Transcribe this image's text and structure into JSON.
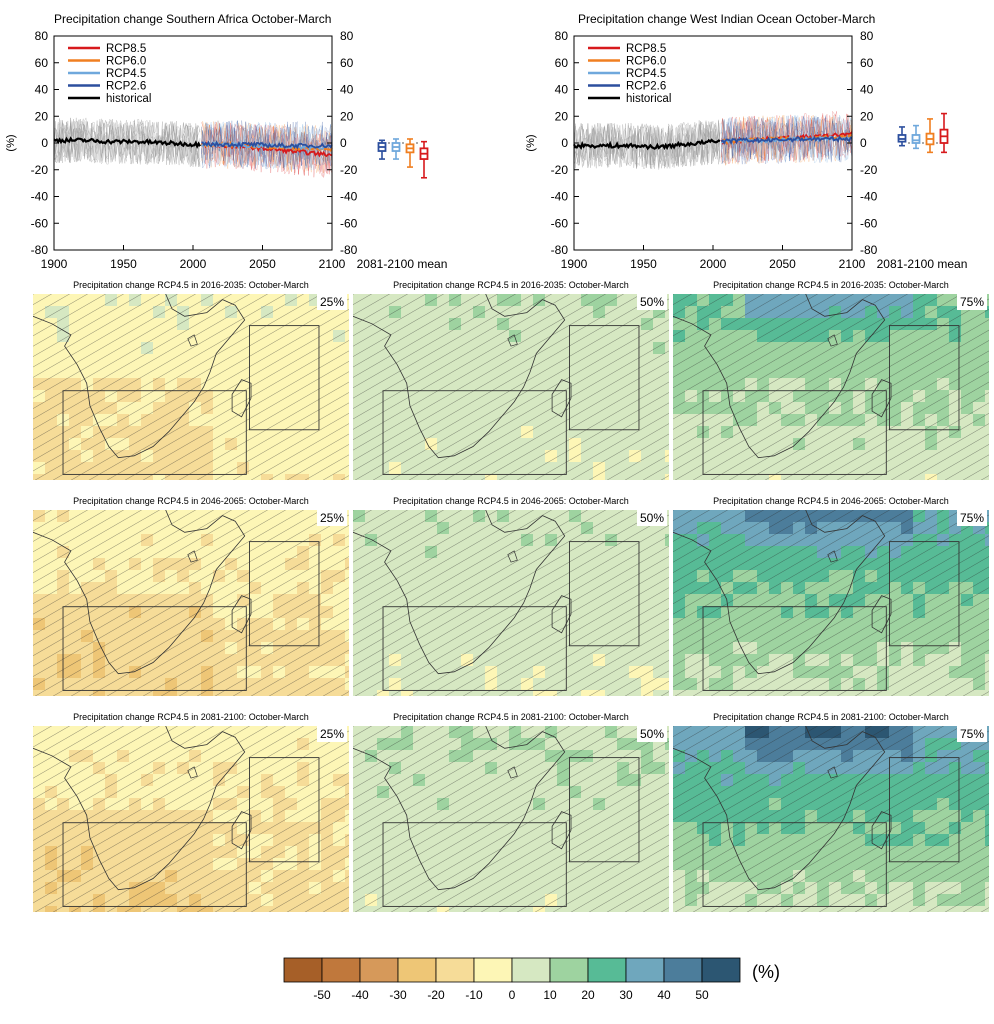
{
  "chart_data": [
    {
      "type": "line",
      "title": "Precipitation change Southern Africa October-March",
      "ylabel": "(%)",
      "xlim": [
        1900,
        2100
      ],
      "ylim": [
        -80,
        80
      ],
      "xticks": [
        1900,
        1950,
        2000,
        2050,
        2100
      ],
      "yticks": [
        -80,
        -60,
        -40,
        -20,
        0,
        20,
        40,
        60,
        80
      ],
      "mean_label": "2081-2100 mean",
      "legend_position": "top-left",
      "series": [
        {
          "name": "RCP8.5",
          "color": "#d7191c",
          "x": [
            2006,
            2020,
            2040,
            2060,
            2080,
            2100
          ],
          "values": [
            -1,
            -2,
            -3,
            -5,
            -7,
            -9
          ]
        },
        {
          "name": "RCP6.0",
          "color": "#f07f20",
          "x": [
            2006,
            2020,
            2040,
            2060,
            2080,
            2100
          ],
          "values": [
            -1,
            -1,
            -2,
            -3,
            -4,
            -5
          ]
        },
        {
          "name": "RCP4.5",
          "color": "#6fa8dc",
          "x": [
            2006,
            2020,
            2040,
            2060,
            2080,
            2100
          ],
          "values": [
            -1,
            -1,
            -2,
            -2,
            -3,
            -3
          ]
        },
        {
          "name": "RCP2.6",
          "color": "#2c4f9e",
          "x": [
            2006,
            2020,
            2040,
            2060,
            2080,
            2100
          ],
          "values": [
            -1,
            -1,
            -1,
            -2,
            -2,
            -2
          ]
        },
        {
          "name": "historical",
          "color": "#000000",
          "x": [
            1900,
            1920,
            1940,
            1960,
            1980,
            2000,
            2005
          ],
          "values": [
            2,
            2,
            1,
            1,
            0,
            -1,
            -1
          ]
        }
      ],
      "boxes": [
        {
          "name": "RCP2.6",
          "color": "#2c4f9e",
          "median": -3,
          "q1": -6,
          "q3": 0,
          "min": -12,
          "max": 2
        },
        {
          "name": "RCP4.5",
          "color": "#6fa8dc",
          "median": -3,
          "q1": -6,
          "q3": 0,
          "min": -12,
          "max": 3
        },
        {
          "name": "RCP6.0",
          "color": "#f07f20",
          "median": -4,
          "q1": -7,
          "q3": -1,
          "min": -18,
          "max": 3
        },
        {
          "name": "RCP8.5",
          "color": "#d7191c",
          "median": -8,
          "q1": -12,
          "q3": -4,
          "min": -26,
          "max": 1
        }
      ]
    },
    {
      "type": "line",
      "title": "Precipitation change West Indian Ocean October-March",
      "ylabel": "(%)",
      "xlim": [
        1900,
        2100
      ],
      "ylim": [
        -80,
        80
      ],
      "xticks": [
        1900,
        1950,
        2000,
        2050,
        2100
      ],
      "yticks": [
        -80,
        -60,
        -40,
        -20,
        0,
        20,
        40,
        60,
        80
      ],
      "mean_label": "2081-2100 mean",
      "legend_position": "top-left",
      "series": [
        {
          "name": "RCP8.5",
          "color": "#d7191c",
          "x": [
            2006,
            2020,
            2040,
            2060,
            2080,
            2100
          ],
          "values": [
            1,
            2,
            3,
            4,
            5,
            7
          ]
        },
        {
          "name": "RCP6.0",
          "color": "#f07f20",
          "x": [
            2006,
            2020,
            2040,
            2060,
            2080,
            2100
          ],
          "values": [
            1,
            2,
            3,
            3,
            4,
            5
          ]
        },
        {
          "name": "RCP4.5",
          "color": "#6fa8dc",
          "x": [
            2006,
            2020,
            2040,
            2060,
            2080,
            2100
          ],
          "values": [
            1,
            2,
            2,
            3,
            3,
            4
          ]
        },
        {
          "name": "RCP2.6",
          "color": "#2c4f9e",
          "x": [
            2006,
            2020,
            2040,
            2060,
            2080,
            2100
          ],
          "values": [
            1,
            2,
            2,
            3,
            3,
            3
          ]
        },
        {
          "name": "historical",
          "color": "#000000",
          "x": [
            1900,
            1920,
            1940,
            1960,
            1980,
            2000,
            2005
          ],
          "values": [
            -2,
            -2,
            -2,
            -3,
            -1,
            1,
            1
          ]
        }
      ],
      "boxes": [
        {
          "name": "RCP2.6",
          "color": "#2c4f9e",
          "median": 3,
          "q1": 1,
          "q3": 6,
          "min": -2,
          "max": 12
        },
        {
          "name": "RCP4.5",
          "color": "#6fa8dc",
          "median": 2,
          "q1": 0,
          "q3": 6,
          "min": -4,
          "max": 13
        },
        {
          "name": "RCP6.0",
          "color": "#f07f20",
          "median": 3,
          "q1": -1,
          "q3": 7,
          "min": -7,
          "max": 18
        },
        {
          "name": "RCP8.5",
          "color": "#d7191c",
          "median": 5,
          "q1": 0,
          "q3": 10,
          "min": -7,
          "max": 22
        }
      ]
    },
    {
      "type": "heatmap",
      "maps": [
        {
          "title": "Precipitation change RCP4.5 in 2016-2035: October-March",
          "percentile": "25%",
          "dominant_change": -5
        },
        {
          "title": "Precipitation change RCP4.5 in 2016-2035: October-March",
          "percentile": "50%",
          "dominant_change": 5
        },
        {
          "title": "Precipitation change RCP4.5 in 2016-2035: October-March",
          "percentile": "75%",
          "dominant_change": 12
        },
        {
          "title": "Precipitation change RCP4.5 in 2046-2065: October-March",
          "percentile": "25%",
          "dominant_change": -10
        },
        {
          "title": "Precipitation change RCP4.5 in 2046-2065: October-March",
          "percentile": "50%",
          "dominant_change": 5
        },
        {
          "title": "Precipitation change RCP4.5 in 2046-2065: October-March",
          "percentile": "75%",
          "dominant_change": 18
        },
        {
          "title": "Precipitation change RCP4.5 in 2081-2100: October-March",
          "percentile": "25%",
          "dominant_change": -10
        },
        {
          "title": "Precipitation change RCP4.5 in 2081-2100: October-March",
          "percentile": "50%",
          "dominant_change": 6
        },
        {
          "title": "Precipitation change RCP4.5 in 2081-2100: October-March",
          "percentile": "75%",
          "dominant_change": 20
        }
      ],
      "colorbar": {
        "unit": "(%)",
        "ticks": [
          -50,
          -40,
          -30,
          -20,
          -10,
          0,
          10,
          20,
          30,
          40,
          50
        ],
        "colors": [
          "#a65f28",
          "#c0783c",
          "#d6995a",
          "#eec676",
          "#f6dc98",
          "#fdf6b6",
          "#d6e8c2",
          "#9ed3a0",
          "#57bb96",
          "#6fa7bd",
          "#4c7d9b",
          "#2c5672"
        ]
      }
    }
  ]
}
